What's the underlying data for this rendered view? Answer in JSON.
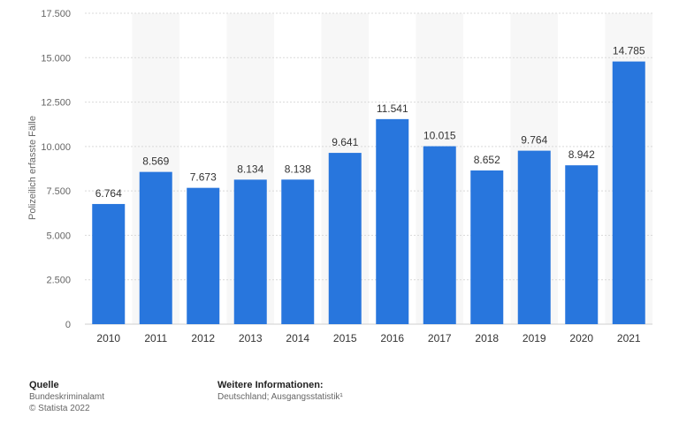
{
  "chart_data": {
    "type": "bar",
    "categories": [
      "2010",
      "2011",
      "2012",
      "2013",
      "2014",
      "2015",
      "2016",
      "2017",
      "2018",
      "2019",
      "2020",
      "2021"
    ],
    "values": [
      6764,
      8569,
      7673,
      8134,
      8138,
      9641,
      11541,
      10015,
      8652,
      9764,
      8942,
      14785
    ],
    "value_labels": [
      "6.764",
      "8.569",
      "7.673",
      "8.134",
      "8.138",
      "9.641",
      "11.541",
      "10.015",
      "8.652",
      "9.764",
      "8.942",
      "14.785"
    ],
    "title": "",
    "xlabel": "",
    "ylabel": "Polizeilich erfasste Fälle",
    "ylim": [
      0,
      17500
    ],
    "yticks": [
      0,
      2500,
      5000,
      7500,
      10000,
      12500,
      15000,
      17500
    ],
    "ytick_labels": [
      "0",
      "2.500",
      "5.000",
      "7.500",
      "10.000",
      "12.500",
      "15.000",
      "17.500"
    ],
    "grid": true,
    "bar_color": "#2876dd"
  },
  "footer": {
    "source_heading": "Quelle",
    "source_line1": "Bundeskriminalamt",
    "source_line2": "© Statista 2022",
    "info_heading": "Weitere Informationen:",
    "info_line1": "Deutschland; Ausgangsstatistik¹"
  }
}
